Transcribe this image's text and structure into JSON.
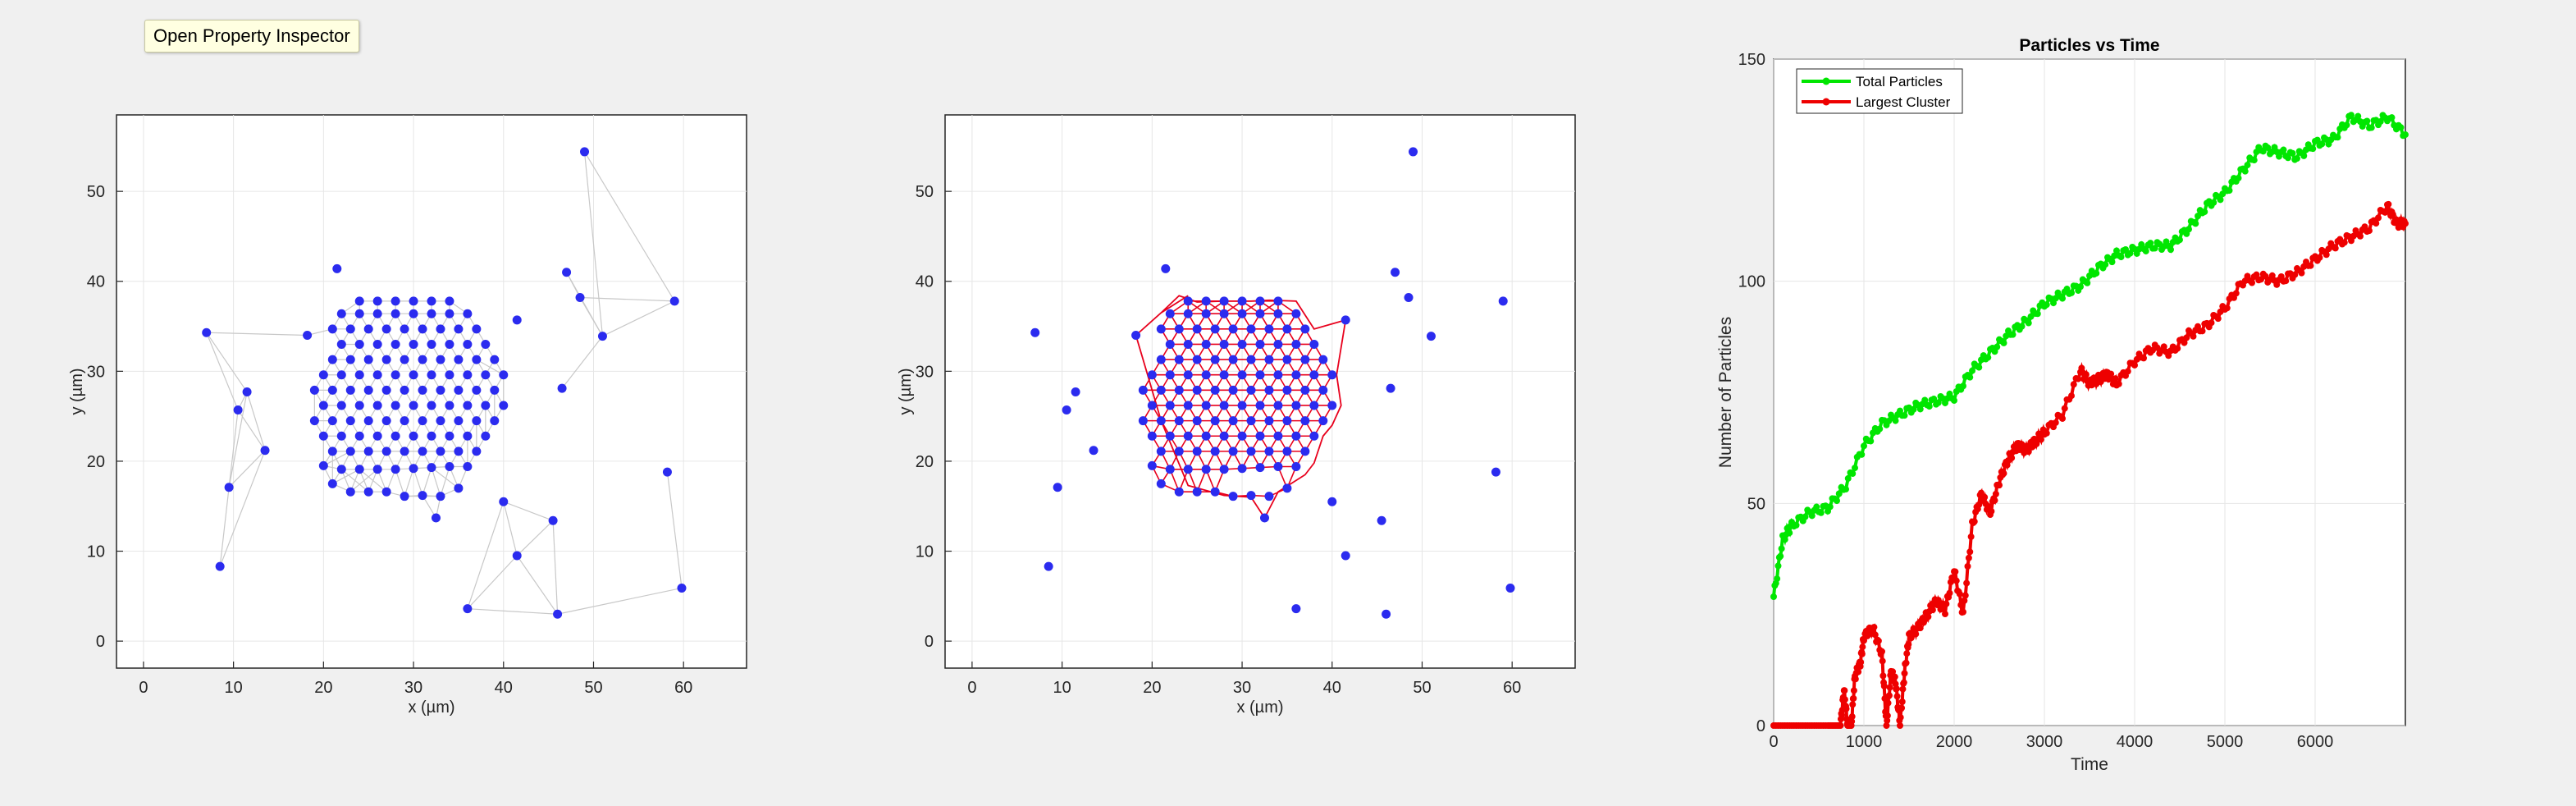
{
  "figure": {
    "tooltip": "Open Property Inspector"
  },
  "chart_data": [
    {
      "type": "scatter",
      "subtype": "delaunay-triangulation",
      "title": "",
      "xlabel": "x (µm)",
      "ylabel": "y (µm)",
      "xlim": [
        -3,
        67
      ],
      "ylim": [
        -3,
        58.5
      ],
      "xticks": [
        0,
        10,
        20,
        30,
        40,
        50,
        60
      ],
      "yticks": [
        0,
        10,
        20,
        30,
        40,
        50
      ],
      "grid": true,
      "series": [
        {
          "name": "particles",
          "color": "#2b2bef"
        }
      ],
      "edge_color": "#c8c8c8",
      "particles": "shared"
    },
    {
      "type": "scatter",
      "subtype": "cluster-bonds",
      "title": "",
      "xlabel": "x (µm)",
      "ylabel": "y (µm)",
      "xlim": [
        -3,
        67
      ],
      "ylim": [
        -3,
        58.5
      ],
      "xticks": [
        0,
        10,
        20,
        30,
        40,
        50,
        60
      ],
      "yticks": [
        0,
        10,
        20,
        30,
        40,
        50
      ],
      "grid": true,
      "series": [
        {
          "name": "particles",
          "color": "#2b2bef"
        }
      ],
      "bond_color": "#e8001c",
      "particles": "shared"
    },
    {
      "type": "line",
      "title": "Particles vs Time",
      "xlabel": "Time",
      "ylabel": "Number of Particles",
      "xlim": [
        0,
        7000
      ],
      "ylim": [
        0,
        150
      ],
      "xticks": [
        0,
        1000,
        2000,
        3000,
        4000,
        5000,
        6000
      ],
      "yticks": [
        0,
        50,
        100,
        150
      ],
      "grid": true,
      "legend": "top-left",
      "series": [
        {
          "name": "Total Particles",
          "color": "#00e600",
          "x": [
            0,
            100,
            200,
            400,
            600,
            800,
            1000,
            1200,
            1400,
            1600,
            1800,
            2000,
            2200,
            2400,
            2600,
            2800,
            3000,
            3200,
            3400,
            3600,
            3800,
            4000,
            4200,
            4400,
            4600,
            4800,
            5000,
            5200,
            5400,
            5600,
            5800,
            6000,
            6200,
            6400,
            6600,
            6800,
            7000
          ],
          "values": [
            29,
            42,
            45,
            48,
            49,
            54,
            63,
            68,
            70,
            72,
            73,
            74,
            80,
            84,
            88,
            91,
            95,
            97,
            99,
            103,
            106,
            107,
            108,
            108,
            112,
            117,
            120,
            125,
            130,
            129,
            128,
            131,
            132,
            137,
            135,
            137,
            133
          ]
        },
        {
          "name": "Largest Cluster",
          "color": "#ee0000",
          "x": [
            0,
            200,
            400,
            600,
            740,
            780,
            820,
            860,
            900,
            960,
            1000,
            1100,
            1200,
            1250,
            1300,
            1350,
            1400,
            1450,
            1500,
            1600,
            1700,
            1800,
            1900,
            2000,
            2100,
            2200,
            2300,
            2400,
            2500,
            2600,
            2700,
            2800,
            2900,
            3000,
            3200,
            3400,
            3500,
            3600,
            3700,
            3800,
            4000,
            4200,
            4400,
            4600,
            4800,
            5000,
            5200,
            5400,
            5600,
            5800,
            6000,
            6200,
            6400,
            6600,
            6800,
            6900,
            7000
          ],
          "values": [
            0,
            0,
            0,
            0,
            0,
            8,
            0,
            0,
            11,
            14,
            20,
            22,
            16,
            0,
            12,
            10,
            0,
            12,
            20,
            22,
            25,
            28,
            26,
            35,
            25,
            45,
            52,
            48,
            55,
            60,
            63,
            62,
            64,
            66,
            70,
            80,
            77,
            78,
            79,
            77,
            82,
            85,
            84,
            88,
            90,
            94,
            100,
            101,
            100,
            102,
            105,
            108,
            110,
            112,
            117,
            113,
            113
          ]
        }
      ]
    }
  ],
  "particles": {
    "x": [
      21,
      23,
      25,
      27,
      29,
      31,
      33,
      35,
      20,
      22,
      24,
      26,
      28,
      30,
      32,
      34,
      36,
      21,
      23,
      25,
      27,
      29,
      31,
      33,
      35,
      37,
      20,
      22,
      24,
      26,
      28,
      30,
      32,
      34,
      36,
      38,
      19,
      21,
      23,
      25,
      27,
      29,
      31,
      33,
      35,
      37,
      39,
      20,
      22,
      24,
      26,
      28,
      30,
      32,
      34,
      36,
      38,
      40,
      19,
      21,
      23,
      25,
      27,
      29,
      31,
      33,
      35,
      37,
      39,
      20,
      22,
      24,
      26,
      28,
      30,
      32,
      34,
      36,
      38,
      40,
      21,
      23,
      25,
      27,
      29,
      31,
      33,
      35,
      37,
      39,
      22,
      24,
      26,
      28,
      30,
      32,
      34,
      36,
      38,
      21,
      23,
      25,
      27,
      29,
      31,
      33,
      35,
      37,
      22,
      24,
      26,
      28,
      30,
      32,
      34,
      36,
      24,
      26,
      28,
      30,
      32,
      34,
      7,
      8.5,
      9.5,
      10.5,
      11.5,
      13.5,
      18.2,
      21.5,
      32.5,
      36,
      40,
      41.5,
      41.5,
      45.5,
      46.5,
      46,
      47,
      48.5,
      49,
      51,
      58.2,
      59,
      59.8
    ],
    "y": [
      17.5,
      16.6,
      16.6,
      16.6,
      16.1,
      16.2,
      16.1,
      17.0,
      19.5,
      19.1,
      19.1,
      19.1,
      19.1,
      19.2,
      19.3,
      19.4,
      19.4,
      21.1,
      21.1,
      21.1,
      21.1,
      21.1,
      21.1,
      21.1,
      21.1,
      21.1,
      22.8,
      22.8,
      22.8,
      22.8,
      22.8,
      22.8,
      22.8,
      22.8,
      22.8,
      22.8,
      24.5,
      24.5,
      24.5,
      24.5,
      24.5,
      24.5,
      24.5,
      24.5,
      24.5,
      24.5,
      24.5,
      26.2,
      26.2,
      26.2,
      26.2,
      26.2,
      26.2,
      26.2,
      26.2,
      26.2,
      26.2,
      26.2,
      27.9,
      27.9,
      27.9,
      27.9,
      27.9,
      27.9,
      27.9,
      27.9,
      27.9,
      27.9,
      27.9,
      29.6,
      29.6,
      29.6,
      29.6,
      29.6,
      29.6,
      29.6,
      29.6,
      29.6,
      29.6,
      29.6,
      31.3,
      31.3,
      31.3,
      31.3,
      31.3,
      31.3,
      31.3,
      31.3,
      31.3,
      31.3,
      33.0,
      33.0,
      33.0,
      33.0,
      33.0,
      33.0,
      33.0,
      33.0,
      33.0,
      34.7,
      34.7,
      34.7,
      34.7,
      34.7,
      34.7,
      34.7,
      34.7,
      34.7,
      36.4,
      36.4,
      36.4,
      36.4,
      36.4,
      36.4,
      36.4,
      36.4,
      37.8,
      37.8,
      37.8,
      37.8,
      37.8,
      37.8,
      34.3,
      8.3,
      17.1,
      25.7,
      27.7,
      21.2,
      34.0,
      41.4,
      13.7,
      3.6,
      15.5,
      35.7,
      9.5,
      13.4,
      28.1,
      3.0,
      41.0,
      38.2,
      54.4,
      33.9,
      18.8,
      37.8,
      5.9
    ],
    "outline_x": [
      24,
      21,
      18.2,
      19,
      20,
      21,
      24,
      28,
      31,
      32.5,
      34,
      37,
      38,
      39,
      40,
      41,
      40.5,
      41.5,
      38,
      36,
      33,
      31,
      28,
      25,
      23,
      21
    ],
    "outline_y": [
      38.4,
      36.5,
      34.0,
      31.3,
      27.9,
      24.5,
      17.3,
      16.2,
      16.0,
      13.7,
      16.6,
      18.5,
      19.8,
      22.8,
      24.0,
      26.2,
      29.6,
      35.7,
      34.7,
      37.8,
      37.9,
      37.8,
      37.8,
      37.7,
      38.4,
      36.5
    ]
  }
}
